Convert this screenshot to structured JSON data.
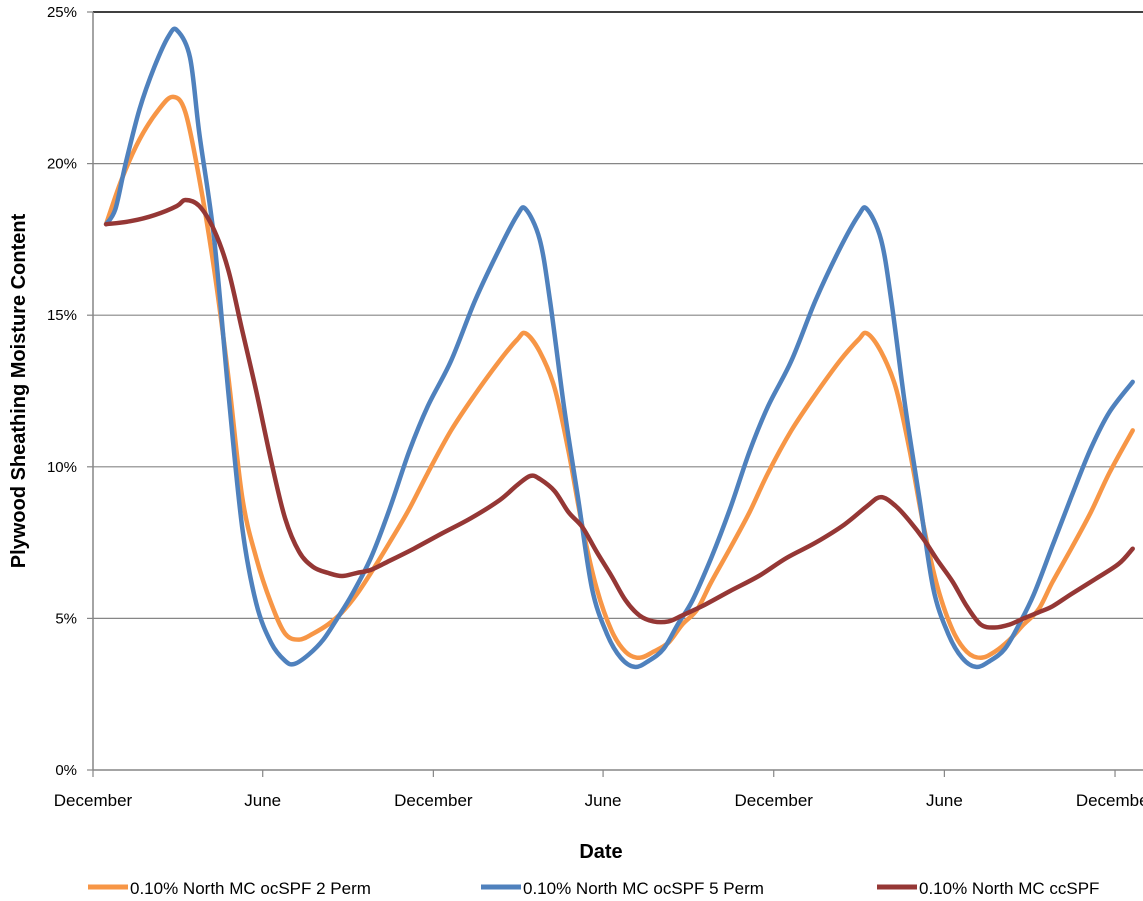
{
  "chart_data": {
    "type": "line",
    "xlabel": "Date",
    "ylabel": "Plywood Sheathing Moisture Content",
    "ylim": [
      0,
      25
    ],
    "yticks": [
      0,
      5,
      10,
      15,
      20,
      25
    ],
    "ytick_labels": [
      "0%",
      "5%",
      "10%",
      "15%",
      "20%",
      "25%"
    ],
    "xlim": [
      "2009-12-01",
      "2012-12-31"
    ],
    "xtick_dates": [
      "2009-12-01",
      "2010-06-01",
      "2010-12-01",
      "2011-06-01",
      "2011-12-01",
      "2012-06-01",
      "2012-12-01"
    ],
    "xtick_labels": [
      "December",
      "June",
      "December",
      "June",
      "December",
      "June",
      "December"
    ],
    "grid": "horizontal",
    "legend_position": "bottom",
    "series": [
      {
        "name": "0.10% North MC ocSPF 2 Perm",
        "color": "#F79646",
        "points": [
          [
            "2009-12-15",
            18.0
          ],
          [
            "2010-01-01",
            19.5
          ],
          [
            "2010-01-20",
            20.8
          ],
          [
            "2010-02-10",
            21.8
          ],
          [
            "2010-02-25",
            22.2
          ],
          [
            "2010-03-10",
            21.7
          ],
          [
            "2010-03-25",
            19.5
          ],
          [
            "2010-04-10",
            16.5
          ],
          [
            "2010-04-25",
            13.0
          ],
          [
            "2010-05-10",
            9.0
          ],
          [
            "2010-05-25",
            7.0
          ],
          [
            "2010-06-10",
            5.5
          ],
          [
            "2010-06-25",
            4.5
          ],
          [
            "2010-07-10",
            4.3
          ],
          [
            "2010-07-25",
            4.5
          ],
          [
            "2010-08-10",
            4.8
          ],
          [
            "2010-08-25",
            5.2
          ],
          [
            "2010-09-10",
            5.8
          ],
          [
            "2010-09-25",
            6.5
          ],
          [
            "2010-10-15",
            7.5
          ],
          [
            "2010-11-05",
            8.6
          ],
          [
            "2010-11-25",
            9.8
          ],
          [
            "2010-12-20",
            11.2
          ],
          [
            "2011-01-15",
            12.4
          ],
          [
            "2011-02-10",
            13.5
          ],
          [
            "2011-03-01",
            14.2
          ],
          [
            "2011-03-10",
            14.4
          ],
          [
            "2011-03-25",
            13.8
          ],
          [
            "2011-04-10",
            12.6
          ],
          [
            "2011-04-25",
            10.5
          ],
          [
            "2011-05-10",
            8.0
          ],
          [
            "2011-05-25",
            6.0
          ],
          [
            "2011-06-10",
            4.6
          ],
          [
            "2011-06-25",
            3.9
          ],
          [
            "2011-07-10",
            3.7
          ],
          [
            "2011-07-25",
            3.9
          ],
          [
            "2011-08-10",
            4.2
          ],
          [
            "2011-08-25",
            4.8
          ],
          [
            "2011-09-10",
            5.3
          ],
          [
            "2011-09-25",
            6.2
          ],
          [
            "2011-10-15",
            7.3
          ],
          [
            "2011-11-05",
            8.5
          ],
          [
            "2011-11-25",
            9.8
          ],
          [
            "2011-12-20",
            11.2
          ],
          [
            "2012-01-15",
            12.4
          ],
          [
            "2012-02-10",
            13.5
          ],
          [
            "2012-03-01",
            14.2
          ],
          [
            "2012-03-10",
            14.4
          ],
          [
            "2012-03-25",
            13.8
          ],
          [
            "2012-04-10",
            12.6
          ],
          [
            "2012-04-25",
            10.5
          ],
          [
            "2012-05-10",
            8.0
          ],
          [
            "2012-05-25",
            6.0
          ],
          [
            "2012-06-10",
            4.6
          ],
          [
            "2012-06-25",
            3.9
          ],
          [
            "2012-07-10",
            3.7
          ],
          [
            "2012-07-25",
            3.9
          ],
          [
            "2012-08-10",
            4.3
          ],
          [
            "2012-08-25",
            4.8
          ],
          [
            "2012-09-10",
            5.3
          ],
          [
            "2012-09-25",
            6.2
          ],
          [
            "2012-10-15",
            7.3
          ],
          [
            "2012-11-05",
            8.5
          ],
          [
            "2012-11-25",
            9.8
          ],
          [
            "2012-12-20",
            11.2
          ]
        ]
      },
      {
        "name": "0.10% North MC ocSPF 5 Perm",
        "color": "#4F81BD",
        "points": [
          [
            "2009-12-15",
            18.0
          ],
          [
            "2009-12-25",
            18.5
          ],
          [
            "2010-01-05",
            20.0
          ],
          [
            "2010-01-20",
            21.8
          ],
          [
            "2010-02-05",
            23.2
          ],
          [
            "2010-02-20",
            24.2
          ],
          [
            "2010-03-01",
            24.4
          ],
          [
            "2010-03-15",
            23.5
          ],
          [
            "2010-03-25",
            21.0
          ],
          [
            "2010-04-10",
            17.5
          ],
          [
            "2010-04-25",
            12.5
          ],
          [
            "2010-05-10",
            8.0
          ],
          [
            "2010-05-25",
            5.5
          ],
          [
            "2010-06-10",
            4.2
          ],
          [
            "2010-06-25",
            3.6
          ],
          [
            "2010-07-05",
            3.5
          ],
          [
            "2010-07-20",
            3.8
          ],
          [
            "2010-08-05",
            4.3
          ],
          [
            "2010-08-20",
            5.0
          ],
          [
            "2010-09-05",
            5.8
          ],
          [
            "2010-09-25",
            7.0
          ],
          [
            "2010-10-15",
            8.6
          ],
          [
            "2010-11-05",
            10.5
          ],
          [
            "2010-11-25",
            12.0
          ],
          [
            "2010-12-20",
            13.5
          ],
          [
            "2011-01-15",
            15.5
          ],
          [
            "2011-02-10",
            17.2
          ],
          [
            "2011-03-01",
            18.3
          ],
          [
            "2011-03-10",
            18.5
          ],
          [
            "2011-03-25",
            17.5
          ],
          [
            "2011-04-05",
            15.5
          ],
          [
            "2011-04-20",
            12.0
          ],
          [
            "2011-05-05",
            9.0
          ],
          [
            "2011-05-20",
            6.0
          ],
          [
            "2011-06-05",
            4.5
          ],
          [
            "2011-06-20",
            3.7
          ],
          [
            "2011-07-05",
            3.4
          ],
          [
            "2011-07-20",
            3.6
          ],
          [
            "2011-08-05",
            4.0
          ],
          [
            "2011-08-20",
            4.8
          ],
          [
            "2011-09-05",
            5.6
          ],
          [
            "2011-09-25",
            7.0
          ],
          [
            "2011-10-15",
            8.6
          ],
          [
            "2011-11-05",
            10.5
          ],
          [
            "2011-11-25",
            12.0
          ],
          [
            "2011-12-20",
            13.5
          ],
          [
            "2012-01-15",
            15.5
          ],
          [
            "2012-02-10",
            17.2
          ],
          [
            "2012-03-01",
            18.3
          ],
          [
            "2012-03-10",
            18.5
          ],
          [
            "2012-03-25",
            17.5
          ],
          [
            "2012-04-05",
            15.5
          ],
          [
            "2012-04-20",
            12.0
          ],
          [
            "2012-05-05",
            9.0
          ],
          [
            "2012-05-20",
            6.0
          ],
          [
            "2012-06-05",
            4.5
          ],
          [
            "2012-06-20",
            3.7
          ],
          [
            "2012-07-05",
            3.4
          ],
          [
            "2012-07-20",
            3.6
          ],
          [
            "2012-08-05",
            4.0
          ],
          [
            "2012-08-20",
            4.8
          ],
          [
            "2012-09-05",
            5.8
          ],
          [
            "2012-09-25",
            7.4
          ],
          [
            "2012-10-15",
            9.0
          ],
          [
            "2012-11-05",
            10.6
          ],
          [
            "2012-11-25",
            11.8
          ],
          [
            "2012-12-20",
            12.8
          ]
        ]
      },
      {
        "name": "0.10% North MC ccSPF",
        "color": "#953735",
        "points": [
          [
            "2009-12-15",
            18.0
          ],
          [
            "2010-01-10",
            18.1
          ],
          [
            "2010-02-05",
            18.3
          ],
          [
            "2010-03-01",
            18.6
          ],
          [
            "2010-03-10",
            18.8
          ],
          [
            "2010-03-25",
            18.6
          ],
          [
            "2010-04-10",
            17.8
          ],
          [
            "2010-04-25",
            16.5
          ],
          [
            "2010-05-10",
            14.5
          ],
          [
            "2010-05-25",
            12.5
          ],
          [
            "2010-06-10",
            10.2
          ],
          [
            "2010-06-25",
            8.3
          ],
          [
            "2010-07-10",
            7.2
          ],
          [
            "2010-07-25",
            6.7
          ],
          [
            "2010-08-10",
            6.5
          ],
          [
            "2010-08-25",
            6.4
          ],
          [
            "2010-09-10",
            6.5
          ],
          [
            "2010-09-25",
            6.6
          ],
          [
            "2010-10-15",
            6.9
          ],
          [
            "2010-11-10",
            7.3
          ],
          [
            "2010-12-10",
            7.8
          ],
          [
            "2011-01-10",
            8.3
          ],
          [
            "2011-02-10",
            8.9
          ],
          [
            "2011-03-01",
            9.4
          ],
          [
            "2011-03-15",
            9.7
          ],
          [
            "2011-03-25",
            9.6
          ],
          [
            "2011-04-10",
            9.2
          ],
          [
            "2011-04-25",
            8.5
          ],
          [
            "2011-05-10",
            8.0
          ],
          [
            "2011-05-25",
            7.2
          ],
          [
            "2011-06-10",
            6.4
          ],
          [
            "2011-06-25",
            5.6
          ],
          [
            "2011-07-10",
            5.1
          ],
          [
            "2011-07-25",
            4.9
          ],
          [
            "2011-08-10",
            4.9
          ],
          [
            "2011-08-25",
            5.1
          ],
          [
            "2011-09-15",
            5.4
          ],
          [
            "2011-10-15",
            5.9
          ],
          [
            "2011-11-15",
            6.4
          ],
          [
            "2011-12-15",
            7.0
          ],
          [
            "2012-01-15",
            7.5
          ],
          [
            "2012-02-15",
            8.1
          ],
          [
            "2012-03-10",
            8.7
          ],
          [
            "2012-03-25",
            9.0
          ],
          [
            "2012-04-10",
            8.7
          ],
          [
            "2012-04-25",
            8.2
          ],
          [
            "2012-05-10",
            7.6
          ],
          [
            "2012-05-25",
            6.9
          ],
          [
            "2012-06-10",
            6.2
          ],
          [
            "2012-06-25",
            5.4
          ],
          [
            "2012-07-10",
            4.8
          ],
          [
            "2012-07-25",
            4.7
          ],
          [
            "2012-08-10",
            4.8
          ],
          [
            "2012-08-25",
            5.0
          ],
          [
            "2012-09-10",
            5.2
          ],
          [
            "2012-09-25",
            5.4
          ],
          [
            "2012-10-15",
            5.8
          ],
          [
            "2012-11-10",
            6.3
          ],
          [
            "2012-12-05",
            6.8
          ],
          [
            "2012-12-20",
            7.3
          ]
        ]
      }
    ]
  }
}
